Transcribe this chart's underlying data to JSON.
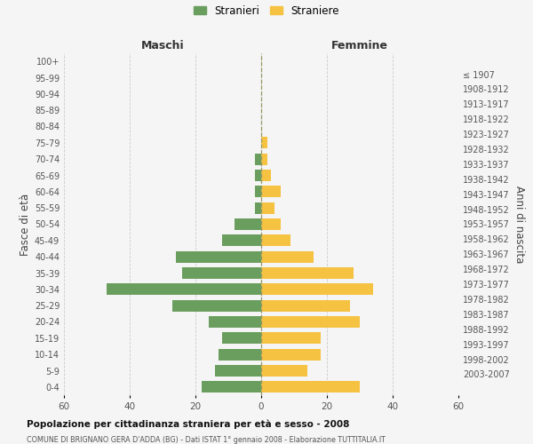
{
  "age_groups": [
    "0-4",
    "5-9",
    "10-14",
    "15-19",
    "20-24",
    "25-29",
    "30-34",
    "35-39",
    "40-44",
    "45-49",
    "50-54",
    "55-59",
    "60-64",
    "65-69",
    "70-74",
    "75-79",
    "80-84",
    "85-89",
    "90-94",
    "95-99",
    "100+"
  ],
  "birth_years": [
    "2003-2007",
    "1998-2002",
    "1993-1997",
    "1988-1992",
    "1983-1987",
    "1978-1982",
    "1973-1977",
    "1968-1972",
    "1963-1967",
    "1958-1962",
    "1953-1957",
    "1948-1952",
    "1943-1947",
    "1938-1942",
    "1933-1937",
    "1928-1932",
    "1923-1927",
    "1918-1922",
    "1913-1917",
    "1908-1912",
    "≤ 1907"
  ],
  "maschi": [
    18,
    14,
    13,
    12,
    16,
    27,
    47,
    24,
    26,
    12,
    8,
    2,
    2,
    2,
    2,
    0,
    0,
    0,
    0,
    0,
    0
  ],
  "femmine": [
    30,
    14,
    18,
    18,
    30,
    27,
    34,
    28,
    16,
    9,
    6,
    4,
    6,
    3,
    2,
    2,
    0,
    0,
    0,
    0,
    0
  ],
  "male_color": "#6a9e5e",
  "female_color": "#f5c242",
  "title1": "Popolazione per cittadinanza straniera per età e sesso - 2008",
  "title2": "COMUNE DI BRIGNANO GERA D'ADDA (BG) - Dati ISTAT 1° gennaio 2008 - Elaborazione TUTTITALIA.IT",
  "legend_maschi": "Stranieri",
  "legend_femmine": "Straniere",
  "xlabel_left": "Maschi",
  "xlabel_right": "Femmine",
  "ylabel_left": "Fasce di età",
  "ylabel_right": "Anni di nascita",
  "xlim": 60,
  "background_color": "#f5f5f5",
  "grid_color": "#cccccc"
}
